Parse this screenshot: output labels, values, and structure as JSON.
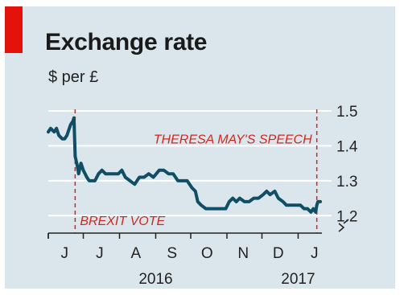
{
  "header": {
    "title": "Exchange rate",
    "subtitle": "$ per £"
  },
  "colors": {
    "background": "#dbe6ec",
    "accent": "#e3120b",
    "line": "#0f4e65",
    "annotation": "#d0281e",
    "grid": "#ffffff"
  },
  "chart_data": {
    "type": "line",
    "title": "Exchange rate",
    "subtitle": "$ per £",
    "xlabel": "",
    "ylabel": "$ per £",
    "ylim": [
      1.15,
      1.5
    ],
    "y_ticks": [
      1.5,
      1.4,
      1.3,
      1.2
    ],
    "y_axis_break": true,
    "x_start": "2016-06-01",
    "x_end": "2017-01-20",
    "x_tick_labels": [
      {
        "label": "J",
        "date": "2016-06-15"
      },
      {
        "label": "J",
        "date": "2016-07-15"
      },
      {
        "label": "A",
        "date": "2016-08-15"
      },
      {
        "label": "S",
        "date": "2016-09-15"
      },
      {
        "label": "O",
        "date": "2016-10-15"
      },
      {
        "label": "N",
        "date": "2016-11-15"
      },
      {
        "label": "D",
        "date": "2016-12-15"
      },
      {
        "label": "J",
        "date": "2017-01-15"
      }
    ],
    "x_tick_marks": [
      "2016-06-01",
      "2016-07-01",
      "2016-08-01",
      "2016-09-01",
      "2016-10-01",
      "2016-11-01",
      "2016-12-01",
      "2017-01-01"
    ],
    "year_labels": [
      {
        "label": "2016",
        "date": "2016-09-01"
      },
      {
        "label": "2017",
        "date": "2017-01-01"
      }
    ],
    "grid": true,
    "series": [
      {
        "values": [
          [
            "2016-06-01",
            1.44
          ],
          [
            "2016-06-03",
            1.45
          ],
          [
            "2016-06-06",
            1.44
          ],
          [
            "2016-06-08",
            1.45
          ],
          [
            "2016-06-10",
            1.43
          ],
          [
            "2016-06-13",
            1.42
          ],
          [
            "2016-06-15",
            1.42
          ],
          [
            "2016-06-17",
            1.43
          ],
          [
            "2016-06-20",
            1.46
          ],
          [
            "2016-06-22",
            1.47
          ],
          [
            "2016-06-23",
            1.48
          ],
          [
            "2016-06-24",
            1.37
          ],
          [
            "2016-06-26",
            1.34
          ],
          [
            "2016-06-27",
            1.32
          ],
          [
            "2016-06-29",
            1.35
          ],
          [
            "2016-07-01",
            1.33
          ],
          [
            "2016-07-04",
            1.31
          ],
          [
            "2016-07-06",
            1.3
          ],
          [
            "2016-07-08",
            1.3
          ],
          [
            "2016-07-11",
            1.3
          ],
          [
            "2016-07-14",
            1.32
          ],
          [
            "2016-07-17",
            1.33
          ],
          [
            "2016-07-20",
            1.32
          ],
          [
            "2016-07-24",
            1.32
          ],
          [
            "2016-07-28",
            1.32
          ],
          [
            "2016-07-31",
            1.32
          ],
          [
            "2016-08-03",
            1.33
          ],
          [
            "2016-08-06",
            1.31
          ],
          [
            "2016-08-10",
            1.3
          ],
          [
            "2016-08-14",
            1.29
          ],
          [
            "2016-08-18",
            1.31
          ],
          [
            "2016-08-22",
            1.31
          ],
          [
            "2016-08-26",
            1.32
          ],
          [
            "2016-08-30",
            1.31
          ],
          [
            "2016-09-04",
            1.33
          ],
          [
            "2016-09-08",
            1.33
          ],
          [
            "2016-09-12",
            1.32
          ],
          [
            "2016-09-16",
            1.32
          ],
          [
            "2016-09-20",
            1.3
          ],
          [
            "2016-09-24",
            1.3
          ],
          [
            "2016-09-28",
            1.3
          ],
          [
            "2016-10-02",
            1.28
          ],
          [
            "2016-10-05",
            1.27
          ],
          [
            "2016-10-07",
            1.24
          ],
          [
            "2016-10-10",
            1.23
          ],
          [
            "2016-10-14",
            1.22
          ],
          [
            "2016-10-18",
            1.22
          ],
          [
            "2016-10-22",
            1.22
          ],
          [
            "2016-10-26",
            1.22
          ],
          [
            "2016-10-31",
            1.22
          ],
          [
            "2016-11-03",
            1.24
          ],
          [
            "2016-11-06",
            1.25
          ],
          [
            "2016-11-09",
            1.24
          ],
          [
            "2016-11-12",
            1.25
          ],
          [
            "2016-11-16",
            1.24
          ],
          [
            "2016-11-20",
            1.24
          ],
          [
            "2016-11-24",
            1.25
          ],
          [
            "2016-11-28",
            1.25
          ],
          [
            "2016-12-02",
            1.26
          ],
          [
            "2016-12-05",
            1.27
          ],
          [
            "2016-12-08",
            1.26
          ],
          [
            "2016-12-12",
            1.27
          ],
          [
            "2016-12-15",
            1.25
          ],
          [
            "2016-12-19",
            1.24
          ],
          [
            "2016-12-22",
            1.23
          ],
          [
            "2016-12-26",
            1.23
          ],
          [
            "2016-12-30",
            1.23
          ],
          [
            "2017-01-03",
            1.23
          ],
          [
            "2017-01-06",
            1.22
          ],
          [
            "2017-01-09",
            1.22
          ],
          [
            "2017-01-12",
            1.21
          ],
          [
            "2017-01-14",
            1.22
          ],
          [
            "2017-01-16",
            1.21
          ],
          [
            "2017-01-17",
            1.23
          ],
          [
            "2017-01-18",
            1.24
          ],
          [
            "2017-01-20",
            1.24
          ]
        ]
      }
    ],
    "annotations": [
      {
        "text": "BREXIT VOTE",
        "date": "2016-06-24"
      },
      {
        "text": "THERESA MAY'S SPEECH",
        "date": "2017-01-17"
      }
    ]
  }
}
